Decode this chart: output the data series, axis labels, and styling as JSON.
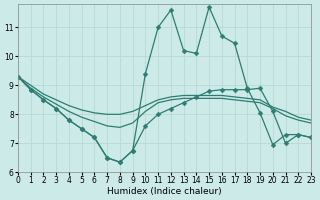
{
  "xlabel": "Humidex (Indice chaleur)",
  "background_color": "#cceae8",
  "grid_color": "#b8d8d5",
  "line_color": "#2e7d72",
  "lines": [
    {
      "x": [
        0,
        1,
        2,
        3,
        4,
        5,
        6,
        7,
        8,
        9,
        10,
        11,
        12,
        13,
        14,
        15,
        16,
        17,
        18,
        19,
        20,
        21,
        22,
        23
      ],
      "y": [
        9.3,
        8.85,
        8.5,
        8.2,
        7.8,
        7.5,
        7.2,
        6.5,
        6.35,
        6.75,
        7.6,
        8.0,
        8.2,
        8.4,
        8.6,
        8.8,
        8.85,
        8.85,
        8.85,
        8.9,
        8.1,
        7.0,
        7.3,
        7.2
      ],
      "marker": "D",
      "markersize": 2.5,
      "linewidth": 0.9
    },
    {
      "x": [
        0,
        1,
        2,
        3,
        4,
        5,
        6,
        7,
        8,
        9,
        10,
        11,
        12,
        13,
        14,
        15,
        16,
        17,
        18,
        19,
        20,
        21,
        22,
        23
      ],
      "y": [
        9.3,
        8.9,
        8.6,
        8.35,
        8.1,
        7.9,
        7.75,
        7.6,
        7.55,
        7.7,
        8.1,
        8.4,
        8.5,
        8.55,
        8.55,
        8.55,
        8.55,
        8.5,
        8.45,
        8.4,
        8.2,
        7.95,
        7.8,
        7.7
      ],
      "marker": null,
      "markersize": 0,
      "linewidth": 0.9
    },
    {
      "x": [
        0,
        1,
        2,
        3,
        4,
        5,
        6,
        7,
        8,
        9,
        10,
        11,
        12,
        13,
        14,
        15,
        16,
        17,
        18,
        19,
        20,
        21,
        22,
        23
      ],
      "y": [
        9.3,
        9.0,
        8.7,
        8.5,
        8.3,
        8.15,
        8.05,
        8.0,
        8.0,
        8.1,
        8.3,
        8.5,
        8.6,
        8.65,
        8.65,
        8.65,
        8.65,
        8.6,
        8.55,
        8.5,
        8.25,
        8.1,
        7.9,
        7.8
      ],
      "marker": null,
      "markersize": 0,
      "linewidth": 0.9
    },
    {
      "x": [
        0,
        1,
        2,
        3,
        4,
        5,
        6,
        7,
        8,
        9,
        10,
        11,
        12,
        13,
        14,
        15,
        16,
        17,
        18,
        19,
        20,
        21,
        22,
        23
      ],
      "y": [
        9.3,
        8.85,
        8.5,
        8.2,
        7.8,
        7.5,
        7.2,
        6.5,
        6.35,
        6.75,
        9.4,
        11.0,
        11.6,
        10.2,
        10.1,
        11.7,
        10.7,
        10.45,
        8.9,
        8.05,
        6.95,
        7.3,
        7.3,
        7.2
      ],
      "marker": "D",
      "markersize": 2.5,
      "linewidth": 0.9
    }
  ],
  "xlim": [
    0,
    23
  ],
  "ylim": [
    6,
    11.8
  ],
  "yticks": [
    6,
    7,
    8,
    9,
    10,
    11
  ],
  "xticks": [
    0,
    1,
    2,
    3,
    4,
    5,
    6,
    7,
    8,
    9,
    10,
    11,
    12,
    13,
    14,
    15,
    16,
    17,
    18,
    19,
    20,
    21,
    22,
    23
  ],
  "xticklabels": [
    "0",
    "1",
    "2",
    "3",
    "4",
    "5",
    "6",
    "7",
    "8",
    "9",
    "10",
    "11",
    "12",
    "13",
    "14",
    "15",
    "16",
    "17",
    "18",
    "19",
    "20",
    "21",
    "22",
    "23"
  ]
}
